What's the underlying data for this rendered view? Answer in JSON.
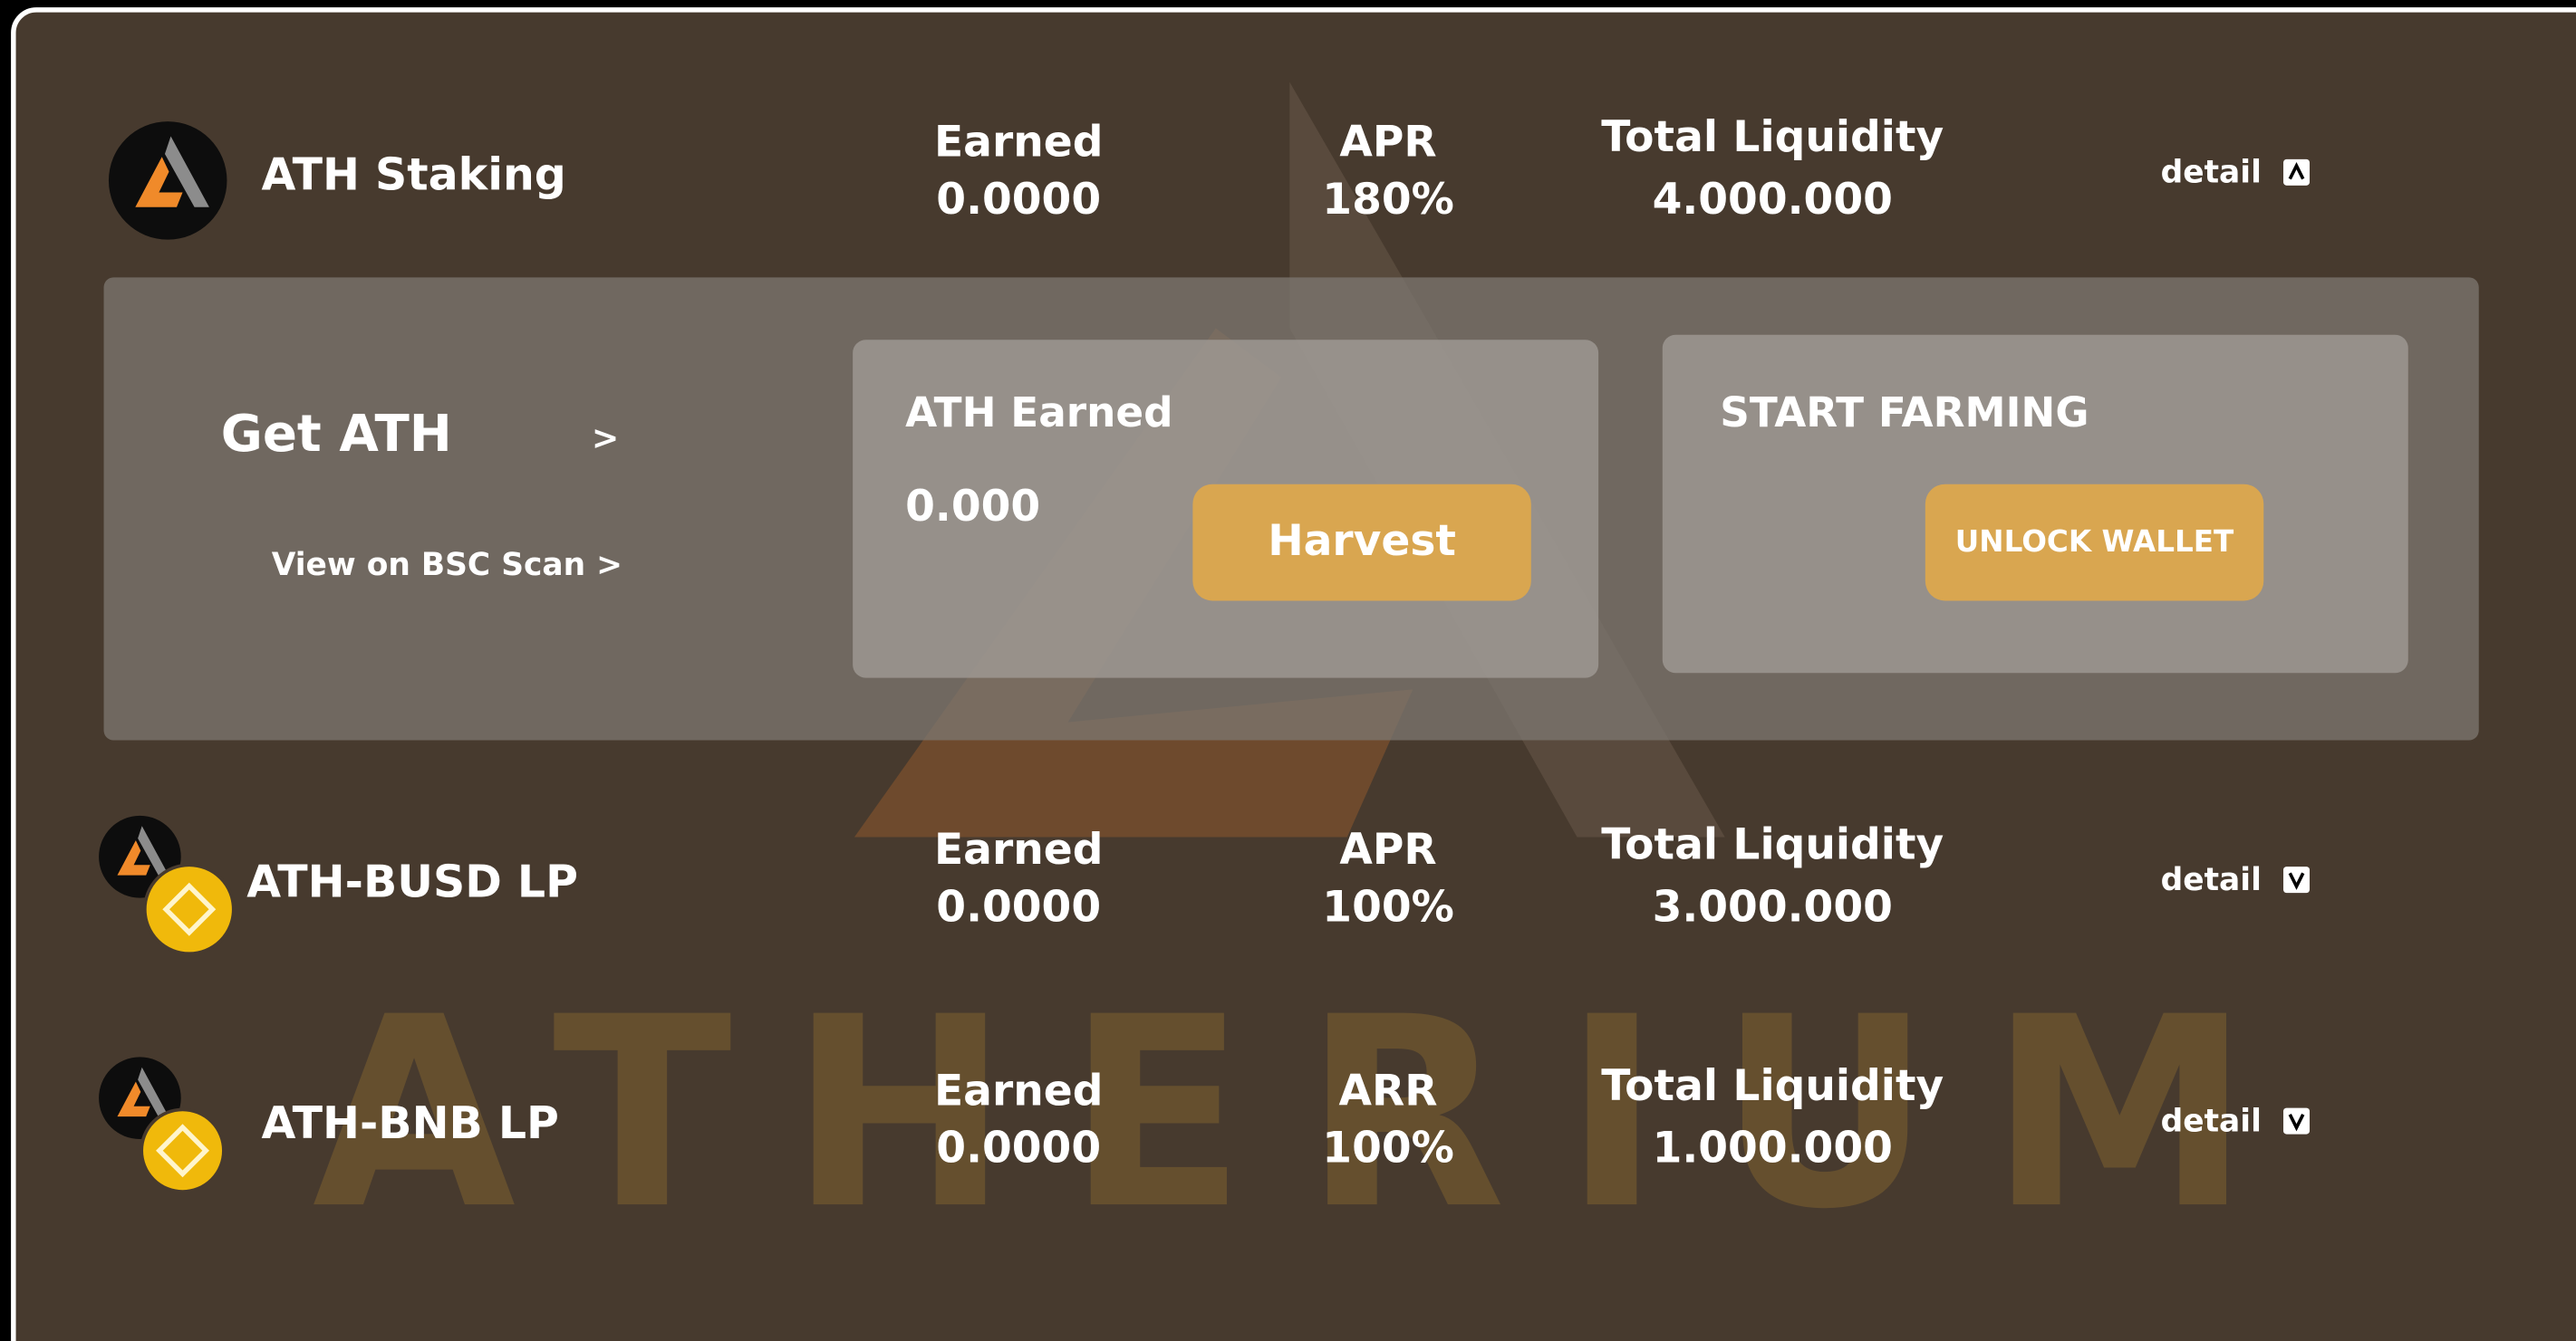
{
  "watermark": "ATHERIUM",
  "farms": [
    {
      "name": "ATH Staking",
      "earned_label": "Earned",
      "earned": "0.0000",
      "apr_label": "APR",
      "apr": "180%",
      "liquidity_label": "Total Liquidity",
      "liquidity": "4.000.000",
      "detail": "detail"
    },
    {
      "name": "ATH-BUSD LP",
      "earned_label": "Earned",
      "earned": "0.0000",
      "apr_label": "APR",
      "apr": "100%",
      "liquidity_label": "Total Liquidity",
      "liquidity": "3.000.000",
      "detail": "detail"
    },
    {
      "name": "ATH-BNB LP",
      "earned_label": "Earned",
      "earned": "0.0000",
      "apr_label": "ARR",
      "apr": "100%",
      "liquidity_label": "Total Liquidity",
      "liquidity": "1.000.000",
      "detail": "detail"
    }
  ],
  "expanded": {
    "get_link": "Get ATH",
    "get_arrow": ">",
    "scan_link": "View on BSC Scan >",
    "earned_title": "ATH Earned",
    "earned_value": "0.000",
    "harvest": "Harvest",
    "farming_title": "START FARMING",
    "unlock": "UNLOCK WALLET"
  }
}
